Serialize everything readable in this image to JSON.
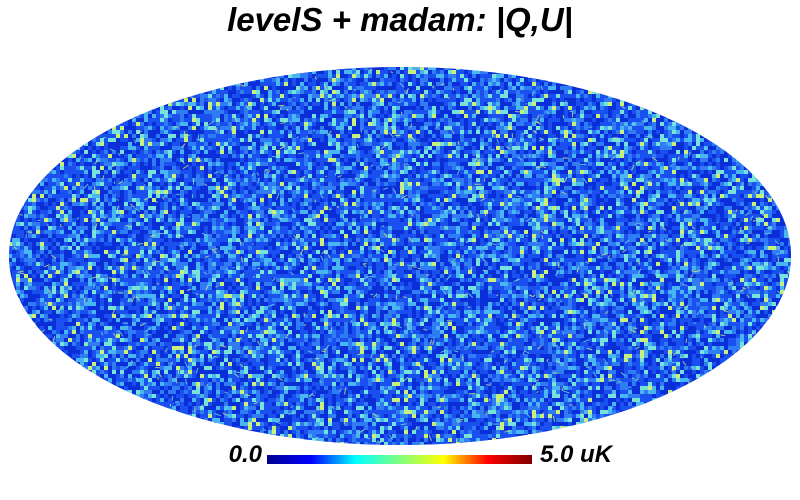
{
  "title": "levelS + madam: |Q,U|",
  "projection": "mollweide",
  "map": {
    "background_color": "#2255ee",
    "noise_palette": [
      "#0a2fd8",
      "#1a4ff0",
      "#2f7cf5",
      "#49b6f4",
      "#78e3d8",
      "#c8f07a"
    ]
  },
  "colorbar": {
    "min_label": "0.0",
    "max_label": "5.0 uK",
    "min_value": 0.0,
    "max_value": 5.0,
    "unit": "uK",
    "colormap": "jet",
    "stops": [
      "#00008f",
      "#0000ff",
      "#00ffff",
      "#7fff7f",
      "#ffff00",
      "#ff0000",
      "#7f0000"
    ]
  }
}
